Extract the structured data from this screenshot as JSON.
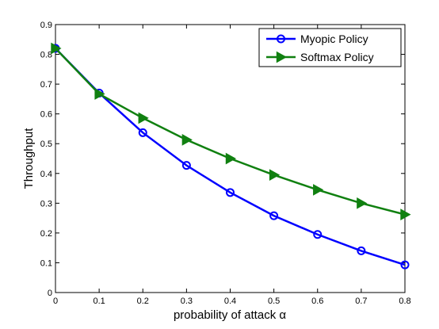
{
  "chart_data": {
    "type": "line",
    "x": [
      0,
      0.1,
      0.2,
      0.3,
      0.4,
      0.5,
      0.6,
      0.7,
      0.8
    ],
    "series": [
      {
        "name": "Myopic Policy",
        "values": [
          0.82,
          0.67,
          0.537,
          0.427,
          0.336,
          0.258,
          0.195,
          0.14,
          0.093
        ],
        "color": "#0000ff",
        "marker": "circle"
      },
      {
        "name": "Softmax Policy",
        "values": [
          0.82,
          0.667,
          0.586,
          0.513,
          0.45,
          0.395,
          0.345,
          0.3,
          0.262
        ],
        "color": "#108010",
        "marker": "triangle-right"
      }
    ],
    "xlabel": "probability of attack α",
    "ylabel": "Throughput",
    "xlim": [
      0,
      0.8
    ],
    "ylim": [
      0,
      0.9
    ],
    "xticks": [
      "0",
      "0.1",
      "0.2",
      "0.3",
      "0.4",
      "0.5",
      "0.6",
      "0.7",
      "0.8"
    ],
    "yticks": [
      "0",
      "0.1",
      "0.2",
      "0.3",
      "0.4",
      "0.5",
      "0.6",
      "0.7",
      "0.8",
      "0.9"
    ],
    "grid": false,
    "legend_position": "top-right"
  }
}
